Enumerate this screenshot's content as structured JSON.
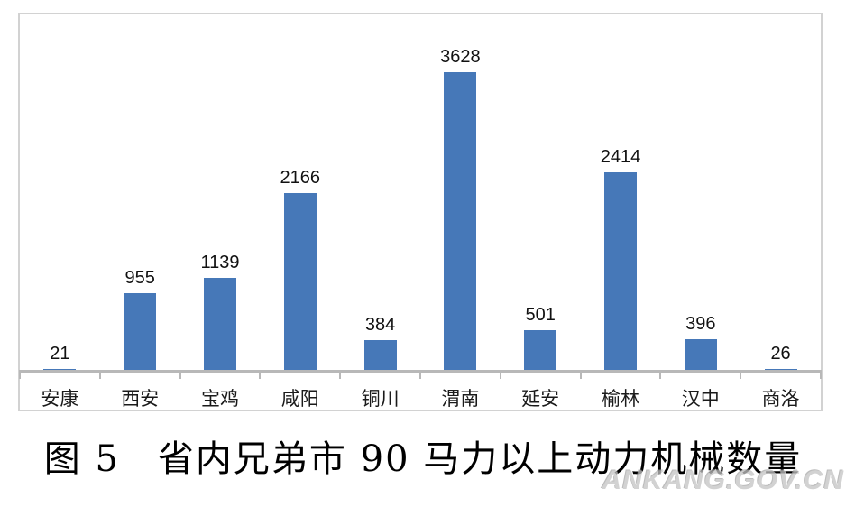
{
  "chart_data": {
    "type": "bar",
    "categories": [
      "安康",
      "西安",
      "宝鸡",
      "咸阳",
      "铜川",
      "渭南",
      "延安",
      "榆林",
      "汉中",
      "商洛"
    ],
    "values": [
      21,
      955,
      1139,
      2166,
      384,
      3628,
      501,
      2414,
      396,
      26
    ],
    "title": "图 5　省内兄弟市 90 马力以上动力机械数量",
    "xlabel": "",
    "ylabel": "",
    "ylim": [
      0,
      3700
    ],
    "grid": false,
    "legend": "none",
    "data_labels": true,
    "bar_color": "#4678b8",
    "axis_color": "#b8b8b8",
    "frame_color": "#d2d2d2"
  },
  "watermark": {
    "text": "ANKANG.GOV.CN"
  }
}
